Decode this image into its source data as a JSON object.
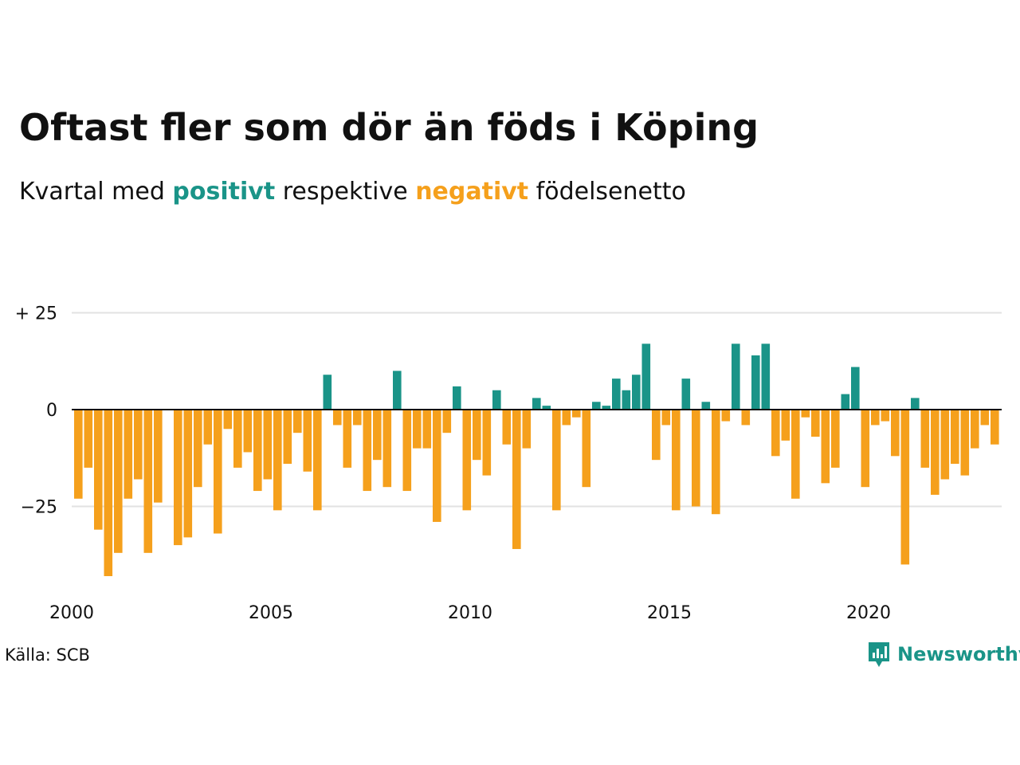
{
  "title": "Oftast fler som dör än föds i Köping",
  "subtitle": {
    "prefix": "Kvartal med ",
    "positive_word": "positivt",
    "middle": " respektive ",
    "negative_word": "negativt",
    "suffix": " födelsenetto"
  },
  "colors": {
    "positive": "#1a9488",
    "negative": "#f5a01c",
    "gridline": "#e2e2e2",
    "zero_line": "#111111",
    "text": "#111111"
  },
  "source": "Källa: SCB",
  "logo": {
    "text": "Newsworthy",
    "icon": "newsworthy-chart-icon"
  },
  "chart_data": {
    "type": "bar",
    "title": "Oftast fler som dör än föds i Köping",
    "subtitle": "Kvartal med positivt respektive negativt födelsenetto",
    "xlabel": "",
    "ylabel": "",
    "ylim": [
      -44,
      27
    ],
    "y_ticks": [
      25,
      0,
      -25
    ],
    "y_tick_labels": [
      "+ 25",
      "0",
      "−25"
    ],
    "x_ticks": [
      2000,
      2005,
      2010,
      2015,
      2020
    ],
    "x_tick_labels": [
      "2000",
      "2005",
      "2010",
      "2015",
      "2020"
    ],
    "grid": true,
    "legend": "none",
    "series": [
      {
        "start_quarter": "2000 Q1",
        "values": [
          -23,
          -15,
          -31,
          -43,
          -37,
          -23,
          -18,
          -37,
          -24,
          0,
          -35,
          -33,
          -20,
          -9,
          -32,
          -5,
          -15,
          -11,
          -21,
          -18,
          -26,
          -14,
          -6,
          -16,
          -26,
          9,
          -4,
          -15,
          -4,
          -21,
          -13,
          -20,
          10,
          -21,
          -10,
          -10,
          -29,
          -6,
          6,
          -26,
          -13,
          -17,
          5,
          -9,
          -36,
          -10,
          3,
          1,
          -26,
          -4,
          -2,
          -20,
          2,
          1,
          8,
          5,
          9,
          17,
          -13,
          -4,
          -26,
          8,
          -25,
          2,
          -27,
          -3,
          17,
          -4,
          14,
          17,
          -12,
          -8,
          -23,
          -2,
          -7,
          -19,
          -15,
          4,
          11,
          -20,
          -4,
          -3,
          -12,
          -40,
          3,
          -15,
          -22,
          -18,
          -14,
          -17,
          -10,
          -4,
          -9
        ]
      }
    ]
  }
}
